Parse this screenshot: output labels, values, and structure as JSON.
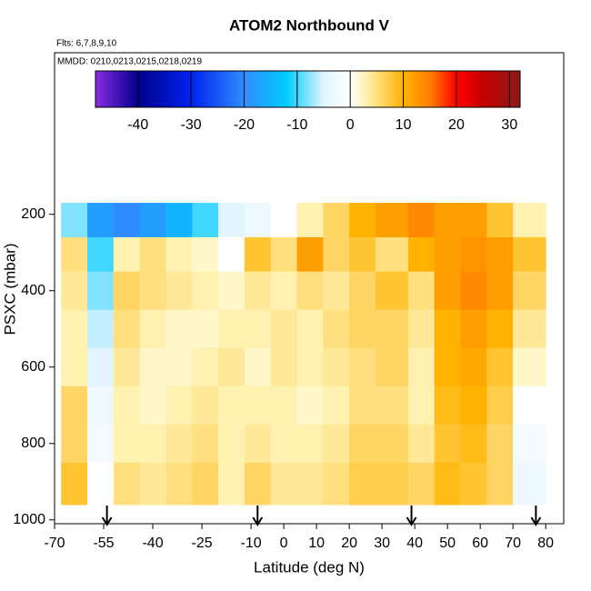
{
  "chart_data": {
    "type": "heatmap",
    "title": "ATOM2 Northbound V",
    "subtitle": "Flts: 6,7,8,9,10",
    "annotation": "MMDD: 0210,0213,0215,0218,0219",
    "x_label": "Latitude (deg N)",
    "y_label": "PSXC (mbar)",
    "xlim": [
      -70,
      85.5
    ],
    "xticks": [
      -70,
      -55,
      -40,
      -25,
      -10,
      0,
      10,
      20,
      30,
      40,
      50,
      60,
      70,
      80
    ],
    "ylim": [
      1010,
      -223
    ],
    "yticks": [
      200,
      400,
      600,
      800,
      1000
    ],
    "x": [
      -68,
      -60,
      -52,
      -44,
      -36,
      -28,
      -20,
      -12,
      -4,
      4,
      12,
      20,
      28,
      38,
      46,
      54,
      62,
      70,
      80
    ],
    "y": [
      170,
      260,
      350,
      450,
      550,
      650,
      750,
      850,
      960
    ],
    "z": [
      [
        -8,
        -18,
        -20,
        -18,
        -15,
        -10,
        -5,
        -3,
        0,
        3,
        6,
        10,
        12,
        14,
        12,
        12,
        8,
        3
      ],
      [
        5,
        -10,
        3,
        5,
        3,
        2,
        0,
        8,
        5,
        12,
        6,
        8,
        5,
        10,
        12,
        13,
        12,
        8
      ],
      [
        4,
        -8,
        6,
        5,
        4,
        3,
        2,
        4,
        3,
        5,
        4,
        6,
        8,
        5,
        12,
        14,
        12,
        6
      ],
      [
        3,
        -6,
        5,
        3,
        2,
        2,
        3,
        3,
        4,
        3,
        5,
        6,
        6,
        4,
        10,
        12,
        10,
        4
      ],
      [
        3,
        -5,
        4,
        2,
        2,
        3,
        4,
        2,
        4,
        3,
        4,
        5,
        6,
        3,
        10,
        11,
        8,
        2
      ],
      [
        6,
        -3,
        3,
        2,
        3,
        4,
        3,
        3,
        3,
        2,
        3,
        5,
        5,
        3,
        9,
        10,
        7,
        0
      ],
      [
        6,
        -2,
        3,
        3,
        4,
        5,
        3,
        4,
        3,
        3,
        4,
        6,
        6,
        4,
        8,
        9,
        6,
        -2
      ],
      [
        8,
        0,
        5,
        4,
        5,
        6,
        3,
        6,
        4,
        4,
        5,
        7,
        7,
        6,
        9,
        8,
        6,
        -3
      ]
    ],
    "zlim": [
      -48,
      32
    ],
    "zticks": [
      -40,
      -30,
      -20,
      -10,
      0,
      10,
      20,
      30
    ],
    "colorscale": [
      [
        -48,
        "#8a2be2"
      ],
      [
        -40,
        "#00008b"
      ],
      [
        -30,
        "#0022ee"
      ],
      [
        -20,
        "#2f8cff"
      ],
      [
        -12,
        "#00ccff"
      ],
      [
        -5,
        "#e2f4ff"
      ],
      [
        0,
        "#ffffff"
      ],
      [
        3,
        "#fff1b0"
      ],
      [
        10,
        "#ffb300"
      ],
      [
        15,
        "#ff7f00"
      ],
      [
        20,
        "#ff0000"
      ],
      [
        25,
        "#c40000"
      ],
      [
        32,
        "#8b1a1a"
      ]
    ],
    "markers_x": [
      -54,
      -8,
      39,
      77
    ]
  }
}
